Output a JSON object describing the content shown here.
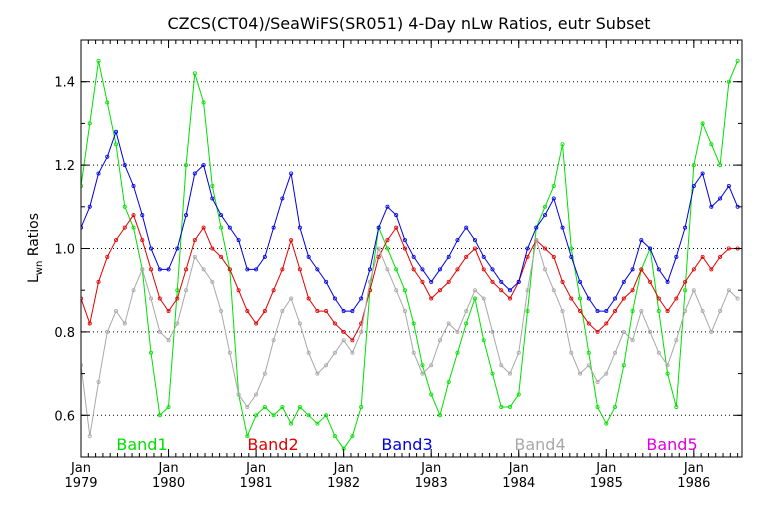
{
  "chart_data": {
    "type": "line",
    "title": "CZCS(CT04)/SeaWiFS(SR051) 4-Day nLw Ratios, eutr Subset",
    "ylabel_main": "L",
    "ylabel_sub": "wn",
    "ylabel_rest": " Ratios",
    "xlabel": "",
    "xlim": [
      1979.0,
      1986.55
    ],
    "ylim": [
      0.5,
      1.5
    ],
    "grid": "horizontal dotted",
    "x_ticks": [
      {
        "month": "Jan",
        "year": "1979",
        "value": 1979.0
      },
      {
        "month": "Jan",
        "year": "1980",
        "value": 1980.0
      },
      {
        "month": "Jan",
        "year": "1981",
        "value": 1981.0
      },
      {
        "month": "Jan",
        "year": "1982",
        "value": 1982.0
      },
      {
        "month": "Jan",
        "year": "1983",
        "value": 1983.0
      },
      {
        "month": "Jan",
        "year": "1984",
        "value": 1984.0
      },
      {
        "month": "Jan",
        "year": "1985",
        "value": 1985.0
      },
      {
        "month": "Jan",
        "year": "1986",
        "value": 1986.0
      }
    ],
    "y_ticks": [
      {
        "label": "0.6",
        "value": 0.6
      },
      {
        "label": "0.8",
        "value": 0.8
      },
      {
        "label": "1.0",
        "value": 1.0
      },
      {
        "label": "1.2",
        "value": 1.2
      },
      {
        "label": "1.4",
        "value": 1.4
      }
    ],
    "legend_placement": "bottom inside plot",
    "series": [
      {
        "name": "Band1",
        "color": "#00e000",
        "x": [
          1979.0,
          1979.1,
          1979.2,
          1979.3,
          1979.4,
          1979.5,
          1979.6,
          1979.7,
          1979.8,
          1979.9,
          1980.0,
          1980.1,
          1980.2,
          1980.3,
          1980.4,
          1980.5,
          1980.6,
          1980.7,
          1980.8,
          1980.9,
          1981.0,
          1981.1,
          1981.2,
          1981.3,
          1981.4,
          1981.5,
          1981.6,
          1981.7,
          1981.8,
          1981.9,
          1982.0,
          1982.1,
          1982.2,
          1982.3,
          1982.4,
          1982.5,
          1982.6,
          1982.7,
          1982.8,
          1982.9,
          1983.0,
          1983.1,
          1983.2,
          1983.3,
          1983.4,
          1983.5,
          1983.6,
          1983.7,
          1983.8,
          1983.9,
          1984.0,
          1984.1,
          1984.2,
          1984.3,
          1984.4,
          1984.5,
          1984.6,
          1984.7,
          1984.8,
          1984.9,
          1985.0,
          1985.1,
          1985.2,
          1985.3,
          1985.4,
          1985.5,
          1985.6,
          1985.7,
          1985.8,
          1985.9,
          1986.0,
          1986.1,
          1986.2,
          1986.3,
          1986.4,
          1986.5
        ],
        "y": [
          1.15,
          1.3,
          1.45,
          1.35,
          1.25,
          1.1,
          1.05,
          0.95,
          0.75,
          0.6,
          0.62,
          0.9,
          1.2,
          1.42,
          1.35,
          1.15,
          1.05,
          0.95,
          0.65,
          0.55,
          0.6,
          0.62,
          0.6,
          0.62,
          0.58,
          0.62,
          0.6,
          0.58,
          0.6,
          0.55,
          0.52,
          0.55,
          0.62,
          0.9,
          1.05,
          1.0,
          0.95,
          0.9,
          0.82,
          0.72,
          0.65,
          0.6,
          0.68,
          0.75,
          0.82,
          0.88,
          0.78,
          0.7,
          0.62,
          0.62,
          0.65,
          0.85,
          1.05,
          1.1,
          1.15,
          1.25,
          1.0,
          0.88,
          0.75,
          0.62,
          0.58,
          0.62,
          0.72,
          0.85,
          0.95,
          1.0,
          0.85,
          0.7,
          0.62,
          0.9,
          1.2,
          1.3,
          1.25,
          1.2,
          1.4,
          1.45
        ]
      },
      {
        "name": "Band2",
        "color": "#e00000",
        "x": [
          1979.0,
          1979.1,
          1979.2,
          1979.3,
          1979.4,
          1979.5,
          1979.6,
          1979.7,
          1979.8,
          1979.9,
          1980.0,
          1980.1,
          1980.2,
          1980.3,
          1980.4,
          1980.5,
          1980.6,
          1980.7,
          1980.8,
          1980.9,
          1981.0,
          1981.1,
          1981.2,
          1981.3,
          1981.4,
          1981.5,
          1981.6,
          1981.7,
          1981.8,
          1981.9,
          1982.0,
          1982.1,
          1982.2,
          1982.3,
          1982.4,
          1982.5,
          1982.6,
          1982.7,
          1982.8,
          1982.9,
          1983.0,
          1983.1,
          1983.2,
          1983.3,
          1983.4,
          1983.5,
          1983.6,
          1983.7,
          1983.8,
          1983.9,
          1984.0,
          1984.1,
          1984.2,
          1984.3,
          1984.4,
          1984.5,
          1984.6,
          1984.7,
          1984.8,
          1984.9,
          1985.0,
          1985.1,
          1985.2,
          1985.3,
          1985.4,
          1985.5,
          1985.6,
          1985.7,
          1985.8,
          1985.9,
          1986.0,
          1986.1,
          1986.2,
          1986.3,
          1986.4,
          1986.5
        ],
        "y": [
          0.88,
          0.82,
          0.92,
          0.98,
          1.02,
          1.05,
          1.08,
          1.02,
          0.95,
          0.88,
          0.85,
          0.88,
          0.95,
          1.02,
          1.05,
          1.0,
          0.98,
          0.95,
          0.9,
          0.85,
          0.82,
          0.85,
          0.9,
          0.95,
          1.02,
          0.95,
          0.88,
          0.85,
          0.85,
          0.82,
          0.8,
          0.78,
          0.82,
          0.9,
          0.98,
          1.02,
          1.05,
          1.0,
          0.95,
          0.92,
          0.88,
          0.9,
          0.92,
          0.95,
          0.98,
          1.0,
          0.95,
          0.92,
          0.9,
          0.88,
          0.92,
          0.98,
          1.02,
          1.0,
          0.98,
          0.92,
          0.88,
          0.85,
          0.82,
          0.8,
          0.82,
          0.85,
          0.88,
          0.9,
          0.95,
          0.92,
          0.88,
          0.85,
          0.88,
          0.92,
          0.95,
          0.98,
          0.95,
          0.98,
          1.0,
          1.0
        ]
      },
      {
        "name": "Band3",
        "color": "#0000e0",
        "x": [
          1979.0,
          1979.1,
          1979.2,
          1979.3,
          1979.4,
          1979.5,
          1979.6,
          1979.7,
          1979.8,
          1979.9,
          1980.0,
          1980.1,
          1980.2,
          1980.3,
          1980.4,
          1980.5,
          1980.6,
          1980.7,
          1980.8,
          1980.9,
          1981.0,
          1981.1,
          1981.2,
          1981.3,
          1981.4,
          1981.5,
          1981.6,
          1981.7,
          1981.8,
          1981.9,
          1982.0,
          1982.1,
          1982.2,
          1982.3,
          1982.4,
          1982.5,
          1982.6,
          1982.7,
          1982.8,
          1982.9,
          1983.0,
          1983.1,
          1983.2,
          1983.3,
          1983.4,
          1983.5,
          1983.6,
          1983.7,
          1983.8,
          1983.9,
          1984.0,
          1984.1,
          1984.2,
          1984.3,
          1984.4,
          1984.5,
          1984.6,
          1984.7,
          1984.8,
          1984.9,
          1985.0,
          1985.1,
          1985.2,
          1985.3,
          1985.4,
          1985.5,
          1985.6,
          1985.7,
          1985.8,
          1985.9,
          1986.0,
          1986.1,
          1986.2,
          1986.3,
          1986.4,
          1986.5
        ],
        "y": [
          1.05,
          1.1,
          1.18,
          1.22,
          1.28,
          1.2,
          1.15,
          1.08,
          1.0,
          0.95,
          0.95,
          1.0,
          1.08,
          1.18,
          1.2,
          1.12,
          1.08,
          1.05,
          1.02,
          0.95,
          0.95,
          0.98,
          1.05,
          1.12,
          1.18,
          1.05,
          0.98,
          0.95,
          0.92,
          0.88,
          0.85,
          0.85,
          0.88,
          0.95,
          1.05,
          1.1,
          1.08,
          1.02,
          0.98,
          0.95,
          0.92,
          0.95,
          0.98,
          1.02,
          1.05,
          1.02,
          0.98,
          0.95,
          0.92,
          0.9,
          0.92,
          1.0,
          1.05,
          1.08,
          1.12,
          1.05,
          0.98,
          0.92,
          0.88,
          0.85,
          0.85,
          0.88,
          0.92,
          0.95,
          1.02,
          1.0,
          0.95,
          0.92,
          0.98,
          1.05,
          1.15,
          1.18,
          1.1,
          1.12,
          1.15,
          1.1
        ]
      },
      {
        "name": "Band4",
        "color": "#a8a8a8",
        "x": [
          1979.0,
          1979.1,
          1979.2,
          1979.3,
          1979.4,
          1979.5,
          1979.6,
          1979.7,
          1979.8,
          1979.9,
          1980.0,
          1980.1,
          1980.2,
          1980.3,
          1980.4,
          1980.5,
          1980.6,
          1980.7,
          1980.8,
          1980.9,
          1981.0,
          1981.1,
          1981.2,
          1981.3,
          1981.4,
          1981.5,
          1981.6,
          1981.7,
          1981.8,
          1981.9,
          1982.0,
          1982.1,
          1982.2,
          1982.3,
          1982.4,
          1982.5,
          1982.6,
          1982.7,
          1982.8,
          1982.9,
          1983.0,
          1983.1,
          1983.2,
          1983.3,
          1983.4,
          1983.5,
          1983.6,
          1983.7,
          1983.8,
          1983.9,
          1984.0,
          1984.1,
          1984.2,
          1984.3,
          1984.4,
          1984.5,
          1984.6,
          1984.7,
          1984.8,
          1984.9,
          1985.0,
          1985.1,
          1985.2,
          1985.3,
          1985.4,
          1985.5,
          1985.6,
          1985.7,
          1985.8,
          1985.9,
          1986.0,
          1986.1,
          1986.2,
          1986.3,
          1986.4,
          1986.5
        ],
        "y": [
          0.72,
          0.55,
          0.68,
          0.8,
          0.85,
          0.82,
          0.9,
          0.95,
          0.88,
          0.8,
          0.78,
          0.82,
          0.9,
          0.98,
          0.95,
          0.92,
          0.85,
          0.75,
          0.65,
          0.62,
          0.65,
          0.7,
          0.78,
          0.85,
          0.88,
          0.82,
          0.75,
          0.7,
          0.72,
          0.75,
          0.78,
          0.75,
          0.8,
          0.92,
          1.0,
          0.95,
          0.9,
          0.85,
          0.75,
          0.7,
          0.72,
          0.78,
          0.82,
          0.8,
          0.85,
          0.9,
          0.88,
          0.8,
          0.72,
          0.7,
          0.75,
          0.9,
          1.02,
          0.95,
          0.9,
          0.85,
          0.75,
          0.7,
          0.72,
          0.68,
          0.7,
          0.75,
          0.8,
          0.78,
          0.85,
          0.8,
          0.75,
          0.72,
          0.78,
          0.85,
          0.9,
          0.85,
          0.8,
          0.85,
          0.9,
          0.88
        ]
      },
      {
        "name": "Band5",
        "color": "#e000e0",
        "x": [],
        "y": []
      }
    ]
  }
}
